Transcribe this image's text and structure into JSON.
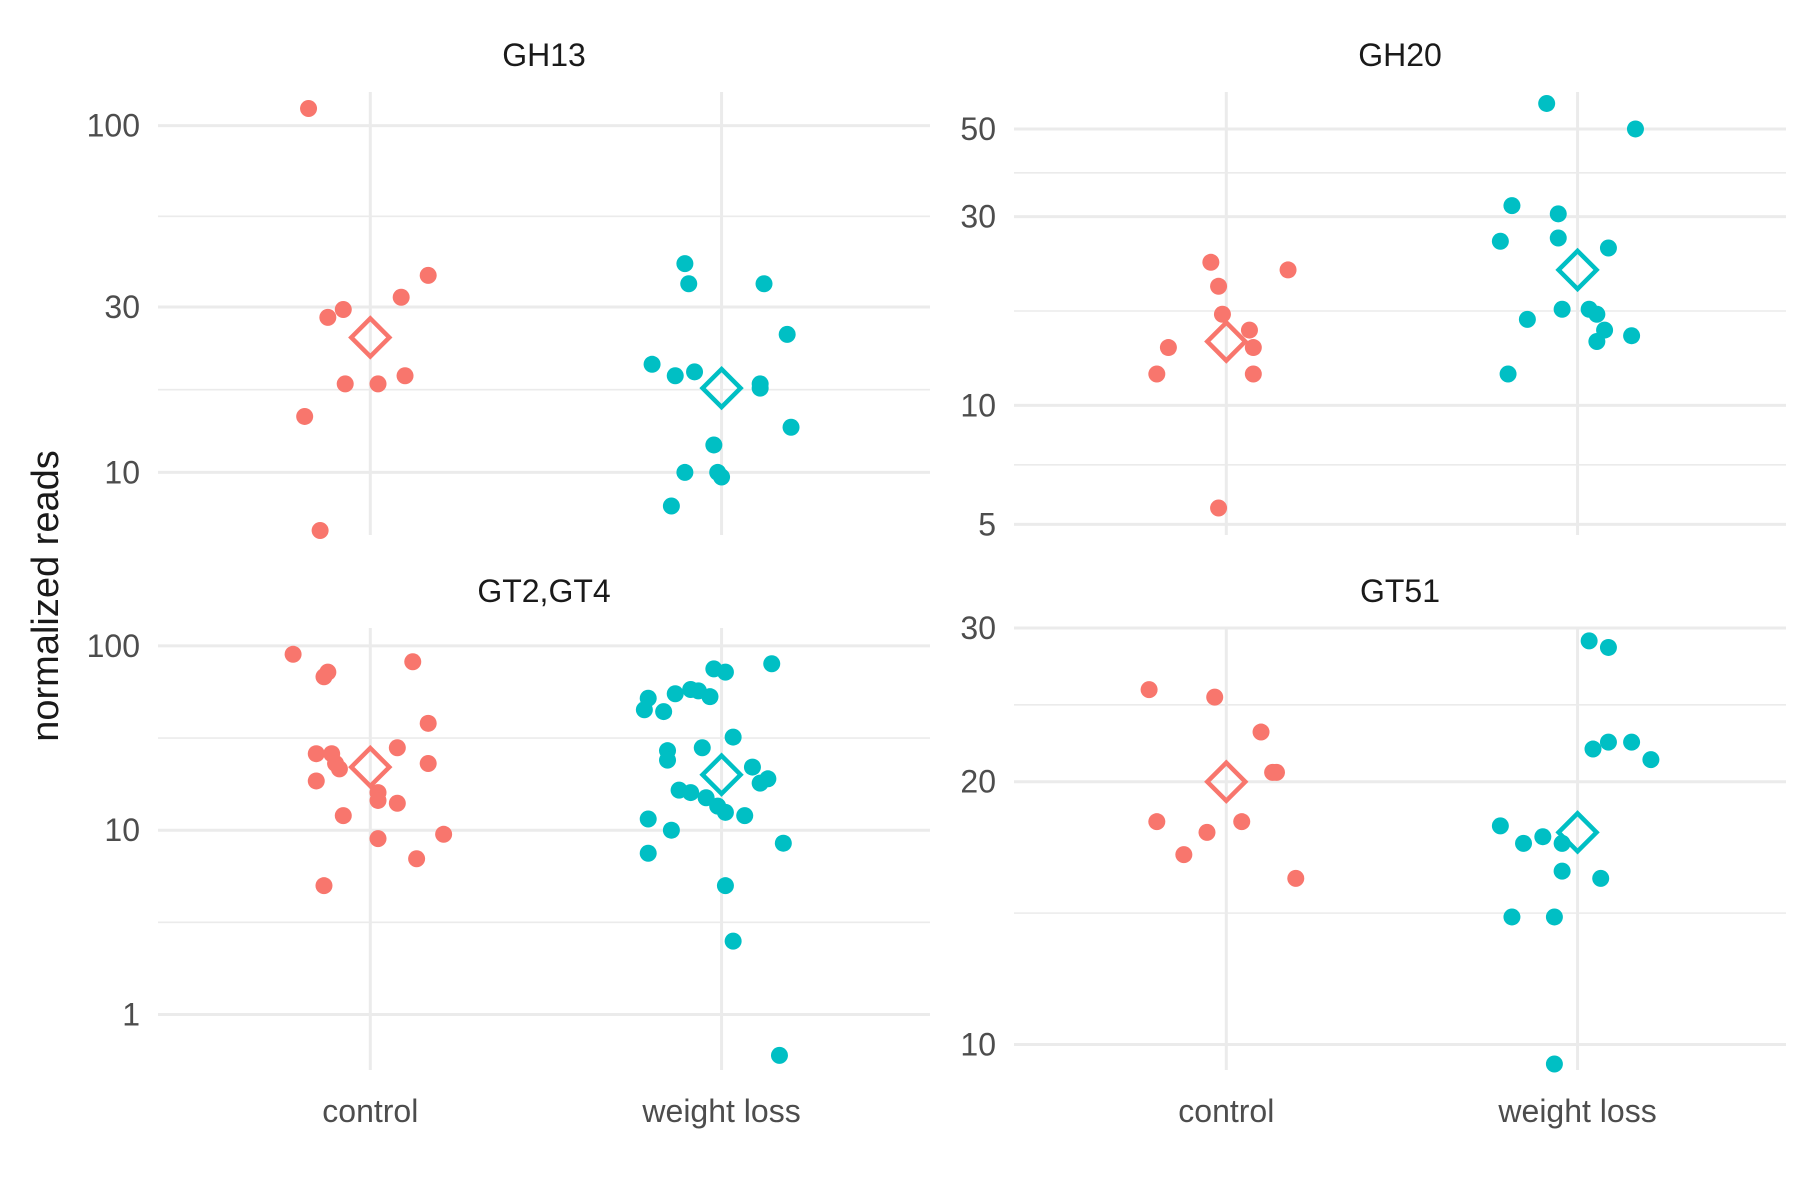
{
  "chart_data": {
    "type": "scatter",
    "layout": "facet-grid 2x2, free y scales",
    "y_scale": "log10",
    "ylabel": "normalized reads",
    "xlabel": "",
    "categories": [
      "control",
      "weight loss"
    ],
    "colors": {
      "control": "#F8766D",
      "weight loss": "#00BFC4"
    },
    "mean_marker": "hollow diamond",
    "grid": true,
    "legend": "none",
    "panels": [
      {
        "title": "GH13",
        "yticks": [
          10,
          30,
          100
        ],
        "ylim": [
          6.6,
          125
        ],
        "series": [
          {
            "name": "control",
            "mean": 24.5,
            "points": [
              [
                -0.16,
                112
              ],
              [
                -0.11,
                28
              ],
              [
                -0.17,
                14.5
              ],
              [
                -0.13,
                6.8
              ],
              [
                -0.07,
                29.5
              ],
              [
                -0.065,
                18
              ],
              [
                0.02,
                18
              ],
              [
                0.08,
                32
              ],
              [
                0.09,
                19
              ],
              [
                0.15,
                37
              ]
            ]
          },
          {
            "name": "weight loss",
            "mean": 17.5,
            "points": [
              [
                -0.18,
                20.5
              ],
              [
                -0.12,
                19
              ],
              [
                -0.07,
                19.5
              ],
              [
                -0.095,
                10
              ],
              [
                -0.13,
                8
              ],
              [
                -0.095,
                40
              ],
              [
                -0.085,
                35
              ],
              [
                -0.02,
                12
              ],
              [
                -0.01,
                10
              ],
              [
                0,
                9.7
              ],
              [
                0.1,
                18
              ],
              [
                0.1,
                17.5
              ],
              [
                0.11,
                35
              ],
              [
                0.17,
                25
              ],
              [
                0.18,
                13.5
              ]
            ]
          }
        ]
      },
      {
        "title": "GH20",
        "yticks": [
          5,
          10,
          30,
          50
        ],
        "ylim": [
          4.7,
          62
        ],
        "series": [
          {
            "name": "control",
            "mean": 14.5,
            "points": [
              [
                -0.18,
                12
              ],
              [
                -0.15,
                14
              ],
              [
                -0.04,
                23
              ],
              [
                -0.02,
                20
              ],
              [
                -0.01,
                17
              ],
              [
                0.06,
                15.5
              ],
              [
                0.07,
                14
              ],
              [
                0.07,
                12
              ],
              [
                0.16,
                22
              ],
              [
                -0.02,
                5.5
              ]
            ]
          },
          {
            "name": "weight loss",
            "mean": 22,
            "points": [
              [
                -0.08,
                58
              ],
              [
                0.15,
                50
              ],
              [
                -0.17,
                32
              ],
              [
                -0.2,
                26
              ],
              [
                -0.13,
                16.5
              ],
              [
                -0.18,
                12
              ],
              [
                -0.05,
                30.5
              ],
              [
                -0.05,
                26.5
              ],
              [
                -0.04,
                17.5
              ],
              [
                0.03,
                17.5
              ],
              [
                0.05,
                17
              ],
              [
                0.08,
                25
              ],
              [
                0.07,
                15.5
              ],
              [
                0.05,
                14.5
              ],
              [
                0.14,
                15
              ]
            ]
          }
        ]
      },
      {
        "title": "GT2,GT4",
        "yticks": [
          1,
          10,
          100
        ],
        "ylim": [
          0.5,
          125
        ],
        "series": [
          {
            "name": "control",
            "mean": 22,
            "points": [
              [
                -0.2,
                90
              ],
              [
                -0.11,
                72
              ],
              [
                -0.12,
                68
              ],
              [
                -0.14,
                26
              ],
              [
                -0.1,
                26
              ],
              [
                -0.09,
                23
              ],
              [
                -0.08,
                21.5
              ],
              [
                -0.14,
                18.5
              ],
              [
                -0.07,
                12
              ],
              [
                0.02,
                16
              ],
              [
                0.02,
                14.5
              ],
              [
                0.07,
                14
              ],
              [
                0.07,
                28
              ],
              [
                0.11,
                82
              ],
              [
                0.15,
                38
              ],
              [
                0.15,
                23
              ],
              [
                0.19,
                9.5
              ],
              [
                0.02,
                9
              ],
              [
                0.12,
                7
              ],
              [
                -0.12,
                5
              ]
            ]
          },
          {
            "name": "weight loss",
            "mean": 20,
            "points": [
              [
                -0.2,
                45
              ],
              [
                -0.19,
                52
              ],
              [
                -0.15,
                44
              ],
              [
                -0.12,
                55
              ],
              [
                -0.08,
                58
              ],
              [
                -0.06,
                57
              ],
              [
                -0.03,
                53
              ],
              [
                -0.02,
                75
              ],
              [
                0.01,
                72
              ],
              [
                0.13,
                80
              ],
              [
                -0.14,
                27
              ],
              [
                -0.14,
                24
              ],
              [
                -0.05,
                28
              ],
              [
                0.03,
                32
              ],
              [
                0.08,
                22
              ],
              [
                0.1,
                18
              ],
              [
                0.12,
                19
              ],
              [
                -0.11,
                16.5
              ],
              [
                -0.08,
                16
              ],
              [
                -0.04,
                15
              ],
              [
                -0.01,
                13.5
              ],
              [
                0.01,
                12.5
              ],
              [
                0.06,
                12
              ],
              [
                -0.19,
                11.5
              ],
              [
                -0.13,
                10
              ],
              [
                0.16,
                8.5
              ],
              [
                -0.19,
                7.5
              ],
              [
                0.01,
                5
              ],
              [
                0.03,
                2.5
              ],
              [
                0.15,
                0.6
              ]
            ]
          }
        ]
      },
      {
        "title": "GT51",
        "yticks": [
          10,
          20,
          30
        ],
        "ylim": [
          9.35,
          30
        ],
        "series": [
          {
            "name": "control",
            "mean": 20,
            "points": [
              [
                -0.2,
                25.5
              ],
              [
                -0.03,
                25
              ],
              [
                -0.18,
                18
              ],
              [
                -0.11,
                16.5
              ],
              [
                -0.05,
                17.5
              ],
              [
                0.04,
                18
              ],
              [
                0.09,
                22.8
              ],
              [
                0.12,
                20.5
              ],
              [
                0.13,
                20.5
              ],
              [
                0.18,
                15.5
              ]
            ]
          },
          {
            "name": "weight loss",
            "mean": 17.5,
            "points": [
              [
                0.03,
                29
              ],
              [
                0.08,
                28.5
              ],
              [
                -0.2,
                17.8
              ],
              [
                -0.14,
                17
              ],
              [
                -0.09,
                17.3
              ],
              [
                -0.04,
                17
              ],
              [
                -0.04,
                15.8
              ],
              [
                -0.06,
                14
              ],
              [
                -0.17,
                14
              ],
              [
                0.06,
                15.5
              ],
              [
                0.08,
                22.2
              ],
              [
                0.04,
                21.8
              ],
              [
                0.14,
                22.2
              ],
              [
                0.19,
                21.2
              ],
              [
                -0.06,
                9.5
              ]
            ]
          }
        ]
      }
    ]
  }
}
